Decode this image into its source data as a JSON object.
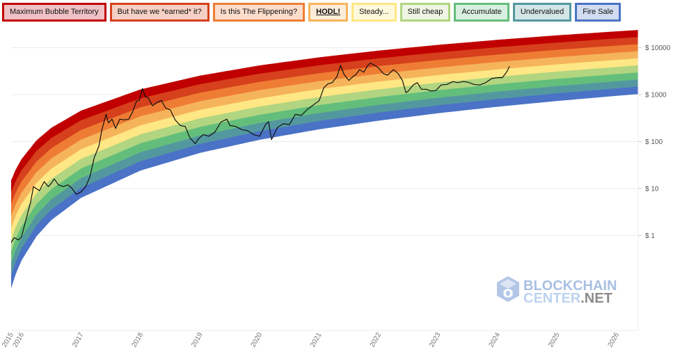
{
  "chart_data": {
    "type": "line",
    "title": "",
    "xlabel": "",
    "ylabel": "",
    "y_scale": "log",
    "ylim": [
      0.0093,
      25000
    ],
    "xlim": [
      2015.82,
      2026.36
    ],
    "grid": "horizontal",
    "legend_placement": "top",
    "legend": [
      {
        "label": "Maximum Bubble Territory",
        "color": "#c00000",
        "bg": "#efc1c4"
      },
      {
        "label": "But have we *earned* it?",
        "color": "#d6401c",
        "bg": "#f5d0c4"
      },
      {
        "label": "Is this The Flippening?",
        "color": "#ee7d33",
        "bg": "#fcdccb"
      },
      {
        "label": "HODL!",
        "color": "#f6b45a",
        "bg": "#fdedd8",
        "highlight": true
      },
      {
        "label": "Steady...",
        "color": "#fee784",
        "bg": "#fff9dc"
      },
      {
        "label": "Still cheap",
        "color": "#b1d580",
        "bg": "#eef5e3"
      },
      {
        "label": "Accumulate",
        "color": "#63be7b",
        "bg": "#d9efdf"
      },
      {
        "label": "Undervalued",
        "color": "#54989f",
        "bg": "#d3e5e6"
      },
      {
        "label": "Fire Sale",
        "color": "#4a72c6",
        "bg": "#d1dcf1"
      }
    ],
    "y_ticks": [
      {
        "label": "$ 10000",
        "value": 10000
      },
      {
        "label": "$ 1000",
        "value": 1000
      },
      {
        "label": "$ 100",
        "value": 100
      },
      {
        "label": "$ 10",
        "value": 10
      },
      {
        "label": "$ 1",
        "value": 1
      }
    ],
    "x_ticks": [
      {
        "label": "2015",
        "value": 2015.82
      },
      {
        "label": "2016",
        "value": 2016
      },
      {
        "label": "2017",
        "value": 2017
      },
      {
        "label": "2018",
        "value": 2018
      },
      {
        "label": "2019",
        "value": 2019
      },
      {
        "label": "2020",
        "value": 2020
      },
      {
        "label": "2021",
        "value": 2021
      },
      {
        "label": "2022",
        "value": 2022
      },
      {
        "label": "2023",
        "value": 2023
      },
      {
        "label": "2024",
        "value": 2024
      },
      {
        "label": "2025",
        "value": 2025
      },
      {
        "label": "2026",
        "value": 2026
      }
    ],
    "rainbow_envelope": {
      "dates": [
        2015.82,
        2015.9,
        2016.0,
        2016.25,
        2016.5,
        2017,
        2018,
        2019,
        2020,
        2021,
        2022,
        2023,
        2024,
        2025,
        2026,
        2026.36
      ],
      "upper": [
        14.1,
        24.8,
        42,
        105,
        195,
        453,
        1282,
        2518,
        4150,
        6170,
        8590,
        11380,
        14580,
        18150,
        22080,
        23600
      ],
      "lower": [
        0.074,
        0.152,
        0.3,
        0.97,
        2.15,
        6.4,
        24.4,
        58,
        110,
        184,
        281,
        405,
        557,
        738,
        950,
        1035
      ]
    },
    "series": [
      {
        "x": [
          2015.82,
          2015.88,
          2015.95,
          2016.0,
          2016.08,
          2016.15,
          2016.2,
          2016.3,
          2016.38,
          2016.45,
          2016.5,
          2016.55,
          2016.62,
          2016.7,
          2016.78,
          2016.85,
          2016.92,
          2017.0,
          2017.08,
          2017.15,
          2017.22,
          2017.3,
          2017.35,
          2017.42,
          2017.46,
          2017.52,
          2017.58,
          2017.65,
          2017.72,
          2017.8,
          2017.87,
          2017.93,
          2017.98,
          2018.03,
          2018.08,
          2018.13,
          2018.2,
          2018.28,
          2018.35,
          2018.42,
          2018.5,
          2018.58,
          2018.67,
          2018.75,
          2018.83,
          2018.92,
          2018.96,
          2019.05,
          2019.15,
          2019.25,
          2019.35,
          2019.45,
          2019.5,
          2019.6,
          2019.7,
          2019.8,
          2019.9,
          2020.0,
          2020.1,
          2020.15,
          2020.2,
          2020.3,
          2020.4,
          2020.5,
          2020.6,
          2020.7,
          2020.8,
          2020.9,
          2021.0,
          2021.08,
          2021.15,
          2021.22,
          2021.3,
          2021.36,
          2021.42,
          2021.5,
          2021.55,
          2021.62,
          2021.68,
          2021.75,
          2021.82,
          2021.86,
          2021.92,
          2022.0,
          2022.08,
          2022.15,
          2022.25,
          2022.33,
          2022.4,
          2022.46,
          2022.5,
          2022.58,
          2022.65,
          2022.72,
          2022.8,
          2022.88,
          2022.96,
          2023.05,
          2023.15,
          2023.25,
          2023.33,
          2023.42,
          2023.5,
          2023.6,
          2023.7,
          2023.8,
          2023.9,
          2024.0,
          2024.08,
          2024.15,
          2024.2
        ],
        "y": [
          0.7,
          0.9,
          0.8,
          0.95,
          2.3,
          5,
          11,
          9,
          14,
          11,
          13,
          16,
          12,
          11,
          12,
          10,
          7.5,
          8.5,
          11,
          18,
          45,
          80,
          180,
          380,
          250,
          300,
          190,
          300,
          290,
          300,
          440,
          720,
          760,
          1350,
          900,
          850,
          580,
          680,
          750,
          520,
          470,
          290,
          220,
          210,
          120,
          90,
          110,
          140,
          130,
          160,
          260,
          300,
          220,
          210,
          180,
          170,
          140,
          130,
          230,
          265,
          110,
          200,
          240,
          230,
          380,
          360,
          480,
          600,
          740,
          1400,
          1700,
          1800,
          2400,
          4200,
          2700,
          2000,
          2300,
          2700,
          3400,
          3000,
          4200,
          4700,
          4300,
          3700,
          2800,
          2600,
          3400,
          2800,
          2000,
          1100,
          1200,
          1600,
          1800,
          1300,
          1300,
          1200,
          1220,
          1600,
          1650,
          1900,
          1800,
          1900,
          1850,
          1650,
          1600,
          1800,
          2200,
          2300,
          2300,
          3000,
          4000
        ]
      }
    ]
  },
  "watermark": {
    "line1": "BLOCKCHAIN",
    "line2a": "CENTER",
    "line2b": ".NET"
  }
}
